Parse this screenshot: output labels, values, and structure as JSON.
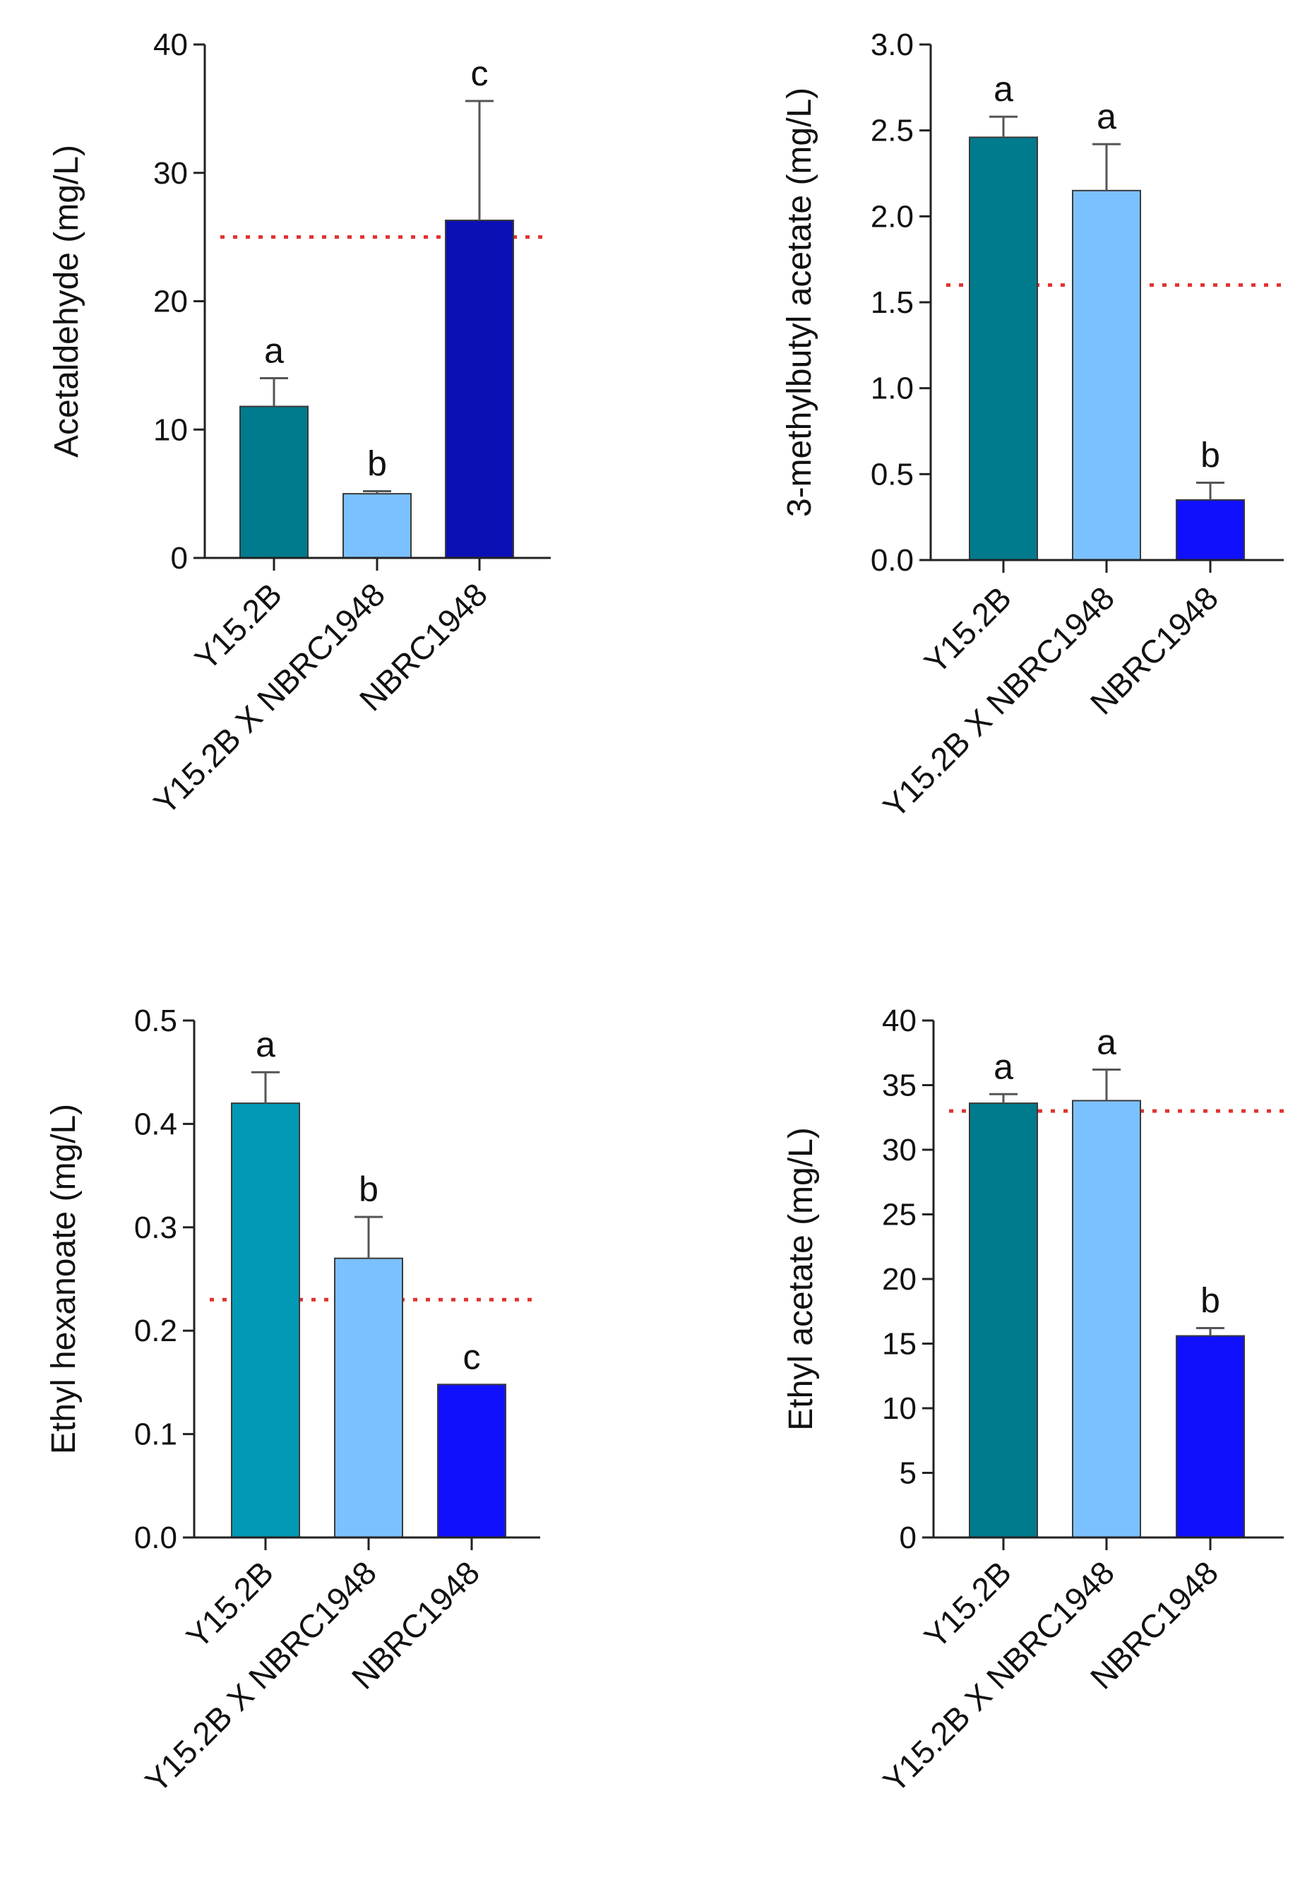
{
  "chart_data": [
    {
      "type": "bar",
      "ylabel": "Acetaldehyde (mg/L)",
      "categories": [
        "Y15.2B",
        "Y15.2B X NBRC1948",
        "NBRC1948"
      ],
      "values": [
        11.8,
        5.0,
        26.3
      ],
      "errors": [
        2.2,
        0.2,
        9.3
      ],
      "letters": [
        "a",
        "b",
        "c"
      ],
      "colors": [
        "#007b8d",
        "#7cc1ff",
        "#0a10b4"
      ],
      "ylim": [
        0,
        40
      ],
      "yticks": [
        "0",
        "10",
        "20",
        "30",
        "40"
      ],
      "reference_line": 25
    },
    {
      "type": "bar",
      "ylabel": "3-methylbutyl acetate (mg/L)",
      "categories": [
        "Y15.2B",
        "Y15.2B X NBRC1948",
        "NBRC1948"
      ],
      "values": [
        2.46,
        2.15,
        0.35
      ],
      "errors": [
        0.12,
        0.27,
        0.1
      ],
      "letters": [
        "a",
        "a",
        "b"
      ],
      "colors": [
        "#007b8d",
        "#7cc1ff",
        "#1010ff"
      ],
      "ylim": [
        0,
        3.0
      ],
      "yticks": [
        "0.0",
        "0.5",
        "1.0",
        "1.5",
        "2.0",
        "2.5",
        "3.0"
      ],
      "reference_line": 1.6
    },
    {
      "type": "bar",
      "ylabel": "Ethyl hexanoate (mg/L)",
      "categories": [
        "Y15.2B",
        "Y15.2B X NBRC1948",
        "NBRC1948"
      ],
      "values": [
        0.42,
        0.27,
        0.148
      ],
      "errors": [
        0.03,
        0.04,
        0.0
      ],
      "letters": [
        "a",
        "b",
        "c"
      ],
      "colors": [
        "#0099b6",
        "#7cc1ff",
        "#1010ff"
      ],
      "ylim": [
        0,
        0.5
      ],
      "yticks": [
        "0.0",
        "0.1",
        "0.2",
        "0.3",
        "0.4",
        "0.5"
      ],
      "reference_line": 0.23
    },
    {
      "type": "bar",
      "ylabel": "Ethyl acetate (mg/L)",
      "categories": [
        "Y15.2B",
        "Y15.2B X NBRC1948",
        "NBRC1948"
      ],
      "values": [
        33.6,
        33.8,
        15.6
      ],
      "errors": [
        0.7,
        2.4,
        0.6
      ],
      "letters": [
        "a",
        "a",
        "b"
      ],
      "colors": [
        "#007b8d",
        "#7cc1ff",
        "#1010ff"
      ],
      "ylim": [
        0,
        40
      ],
      "yticks": [
        "0",
        "5",
        "10",
        "15",
        "20",
        "25",
        "30",
        "35",
        "40"
      ],
      "reference_line": 33
    }
  ]
}
